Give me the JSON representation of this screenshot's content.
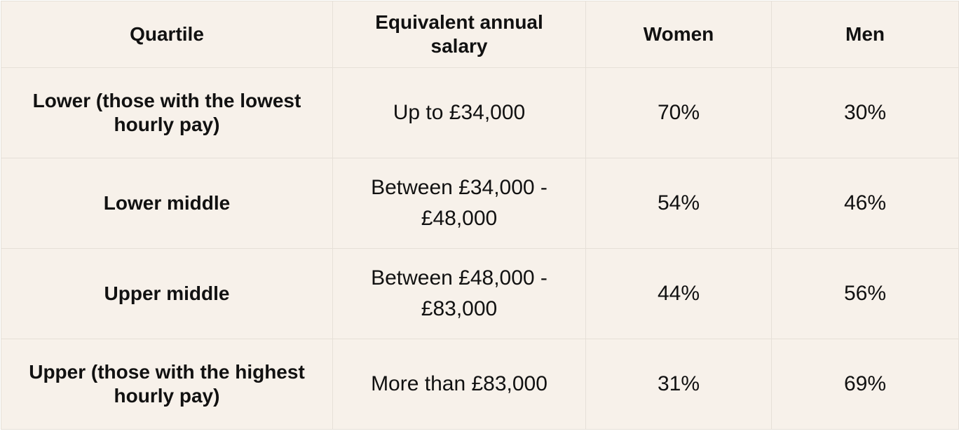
{
  "table": {
    "header": [
      "Quartile",
      "Equivalent annual salary",
      "Women",
      "Men"
    ],
    "rows": [
      [
        "Lower (those with the lowest hourly pay)",
        "Up to £34,000",
        "70%",
        "30%"
      ],
      [
        "Lower middle",
        "Between £34,000 - £48,000",
        "54%",
        "46%"
      ],
      [
        "Upper middle",
        "Between £48,000 - £83,000",
        "44%",
        "56%"
      ],
      [
        "Upper (those with the highest hourly pay)",
        "More than £83,000",
        "31%",
        "69%"
      ]
    ]
  }
}
